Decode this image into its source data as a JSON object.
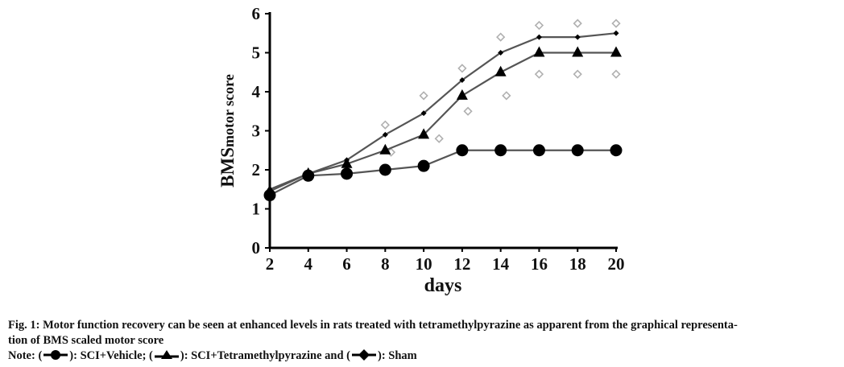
{
  "chart_data": {
    "type": "line",
    "xlabel": "days",
    "ylabel_main": "BMS",
    "ylabel_sub": "motor score",
    "x": [
      2,
      4,
      6,
      8,
      10,
      12,
      14,
      16,
      18,
      20
    ],
    "xticks": [
      "2",
      "4",
      "6",
      "8",
      "10",
      "12",
      "14",
      "16",
      "18",
      "20"
    ],
    "yticks": [
      "0",
      "1",
      "2",
      "3",
      "4",
      "5",
      "6"
    ],
    "xlim": [
      2,
      20
    ],
    "ylim": [
      0,
      6
    ],
    "grid": false,
    "series": [
      {
        "marker": "circle",
        "values": [
          1.35,
          1.85,
          1.9,
          2.0,
          2.1,
          2.5,
          2.5,
          2.5,
          2.5,
          2.5
        ]
      },
      {
        "marker": "triangle",
        "values": [
          1.45,
          1.9,
          2.15,
          2.5,
          2.9,
          3.9,
          4.5,
          5.0,
          5.0,
          5.0
        ]
      },
      {
        "marker": "diamond",
        "values": [
          1.5,
          1.9,
          2.25,
          2.9,
          3.45,
          4.3,
          5.0,
          5.4,
          5.4,
          5.5
        ]
      }
    ],
    "scatter_points": [
      {
        "x": 8,
        "y": 3.15
      },
      {
        "x": 8.3,
        "y": 2.45
      },
      {
        "x": 10,
        "y": 3.9
      },
      {
        "x": 10.8,
        "y": 2.8
      },
      {
        "x": 12,
        "y": 4.6
      },
      {
        "x": 12.3,
        "y": 3.5
      },
      {
        "x": 14,
        "y": 5.4
      },
      {
        "x": 14.3,
        "y": 3.9
      },
      {
        "x": 16,
        "y": 5.7
      },
      {
        "x": 16,
        "y": 4.45
      },
      {
        "x": 18,
        "y": 5.75
      },
      {
        "x": 18,
        "y": 4.45
      },
      {
        "x": 20,
        "y": 5.75
      },
      {
        "x": 20,
        "y": 4.45
      }
    ],
    "colors": {
      "line": "#555555",
      "marker": "#000000",
      "scatter": "#b0b0b0"
    }
  },
  "caption": {
    "title": "Fig. 1: Motor function recovery can be seen at enhanced levels in rats treated with tetramethylpyrazine as apparent from the graphical representa-",
    "title_cont": "tion of BMS scaled motor score",
    "note_prefix": "Note: (",
    "legend_1": "): SCI+Vehicle; (",
    "legend_2": "): SCI+Tetramethylpyrazine and (",
    "legend_3": "): Sham"
  }
}
